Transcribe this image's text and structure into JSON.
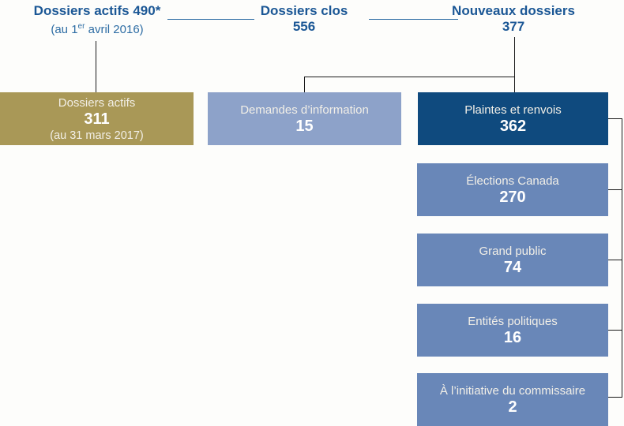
{
  "colors": {
    "header_text": "#1b5795",
    "subtitle_text": "#2e6da4",
    "gold_box": "#a99857",
    "light_blue_box": "#8da2c9",
    "dark_blue_box": "#0f4a7e",
    "medium_blue_box": "#6987b8",
    "connector_line": "#1a1a1a"
  },
  "headers": {
    "active": {
      "title": "Dossiers actifs 490*",
      "subtitle_prefix": "(au 1",
      "subtitle_sup": "er",
      "subtitle_suffix": " avril 2016)"
    },
    "closed": {
      "title": "Dossiers clos",
      "value": "556"
    },
    "new": {
      "title": "Nouveaux dossiers",
      "value": "377"
    }
  },
  "boxes": {
    "active": {
      "label": "Dossiers actifs",
      "value": "311",
      "note": "(au 31 mars 2017)"
    },
    "info": {
      "label": "Demandes d’information",
      "value": "15"
    },
    "plaintes": {
      "label": "Plaintes et renvois",
      "value": "362"
    },
    "sub": [
      {
        "label": "Élections Canada",
        "value": "270"
      },
      {
        "label": "Grand public",
        "value": "74"
      },
      {
        "label": "Entités politiques",
        "value": "16"
      },
      {
        "label": "À l’initiative du commissaire",
        "value": "2"
      }
    ]
  }
}
